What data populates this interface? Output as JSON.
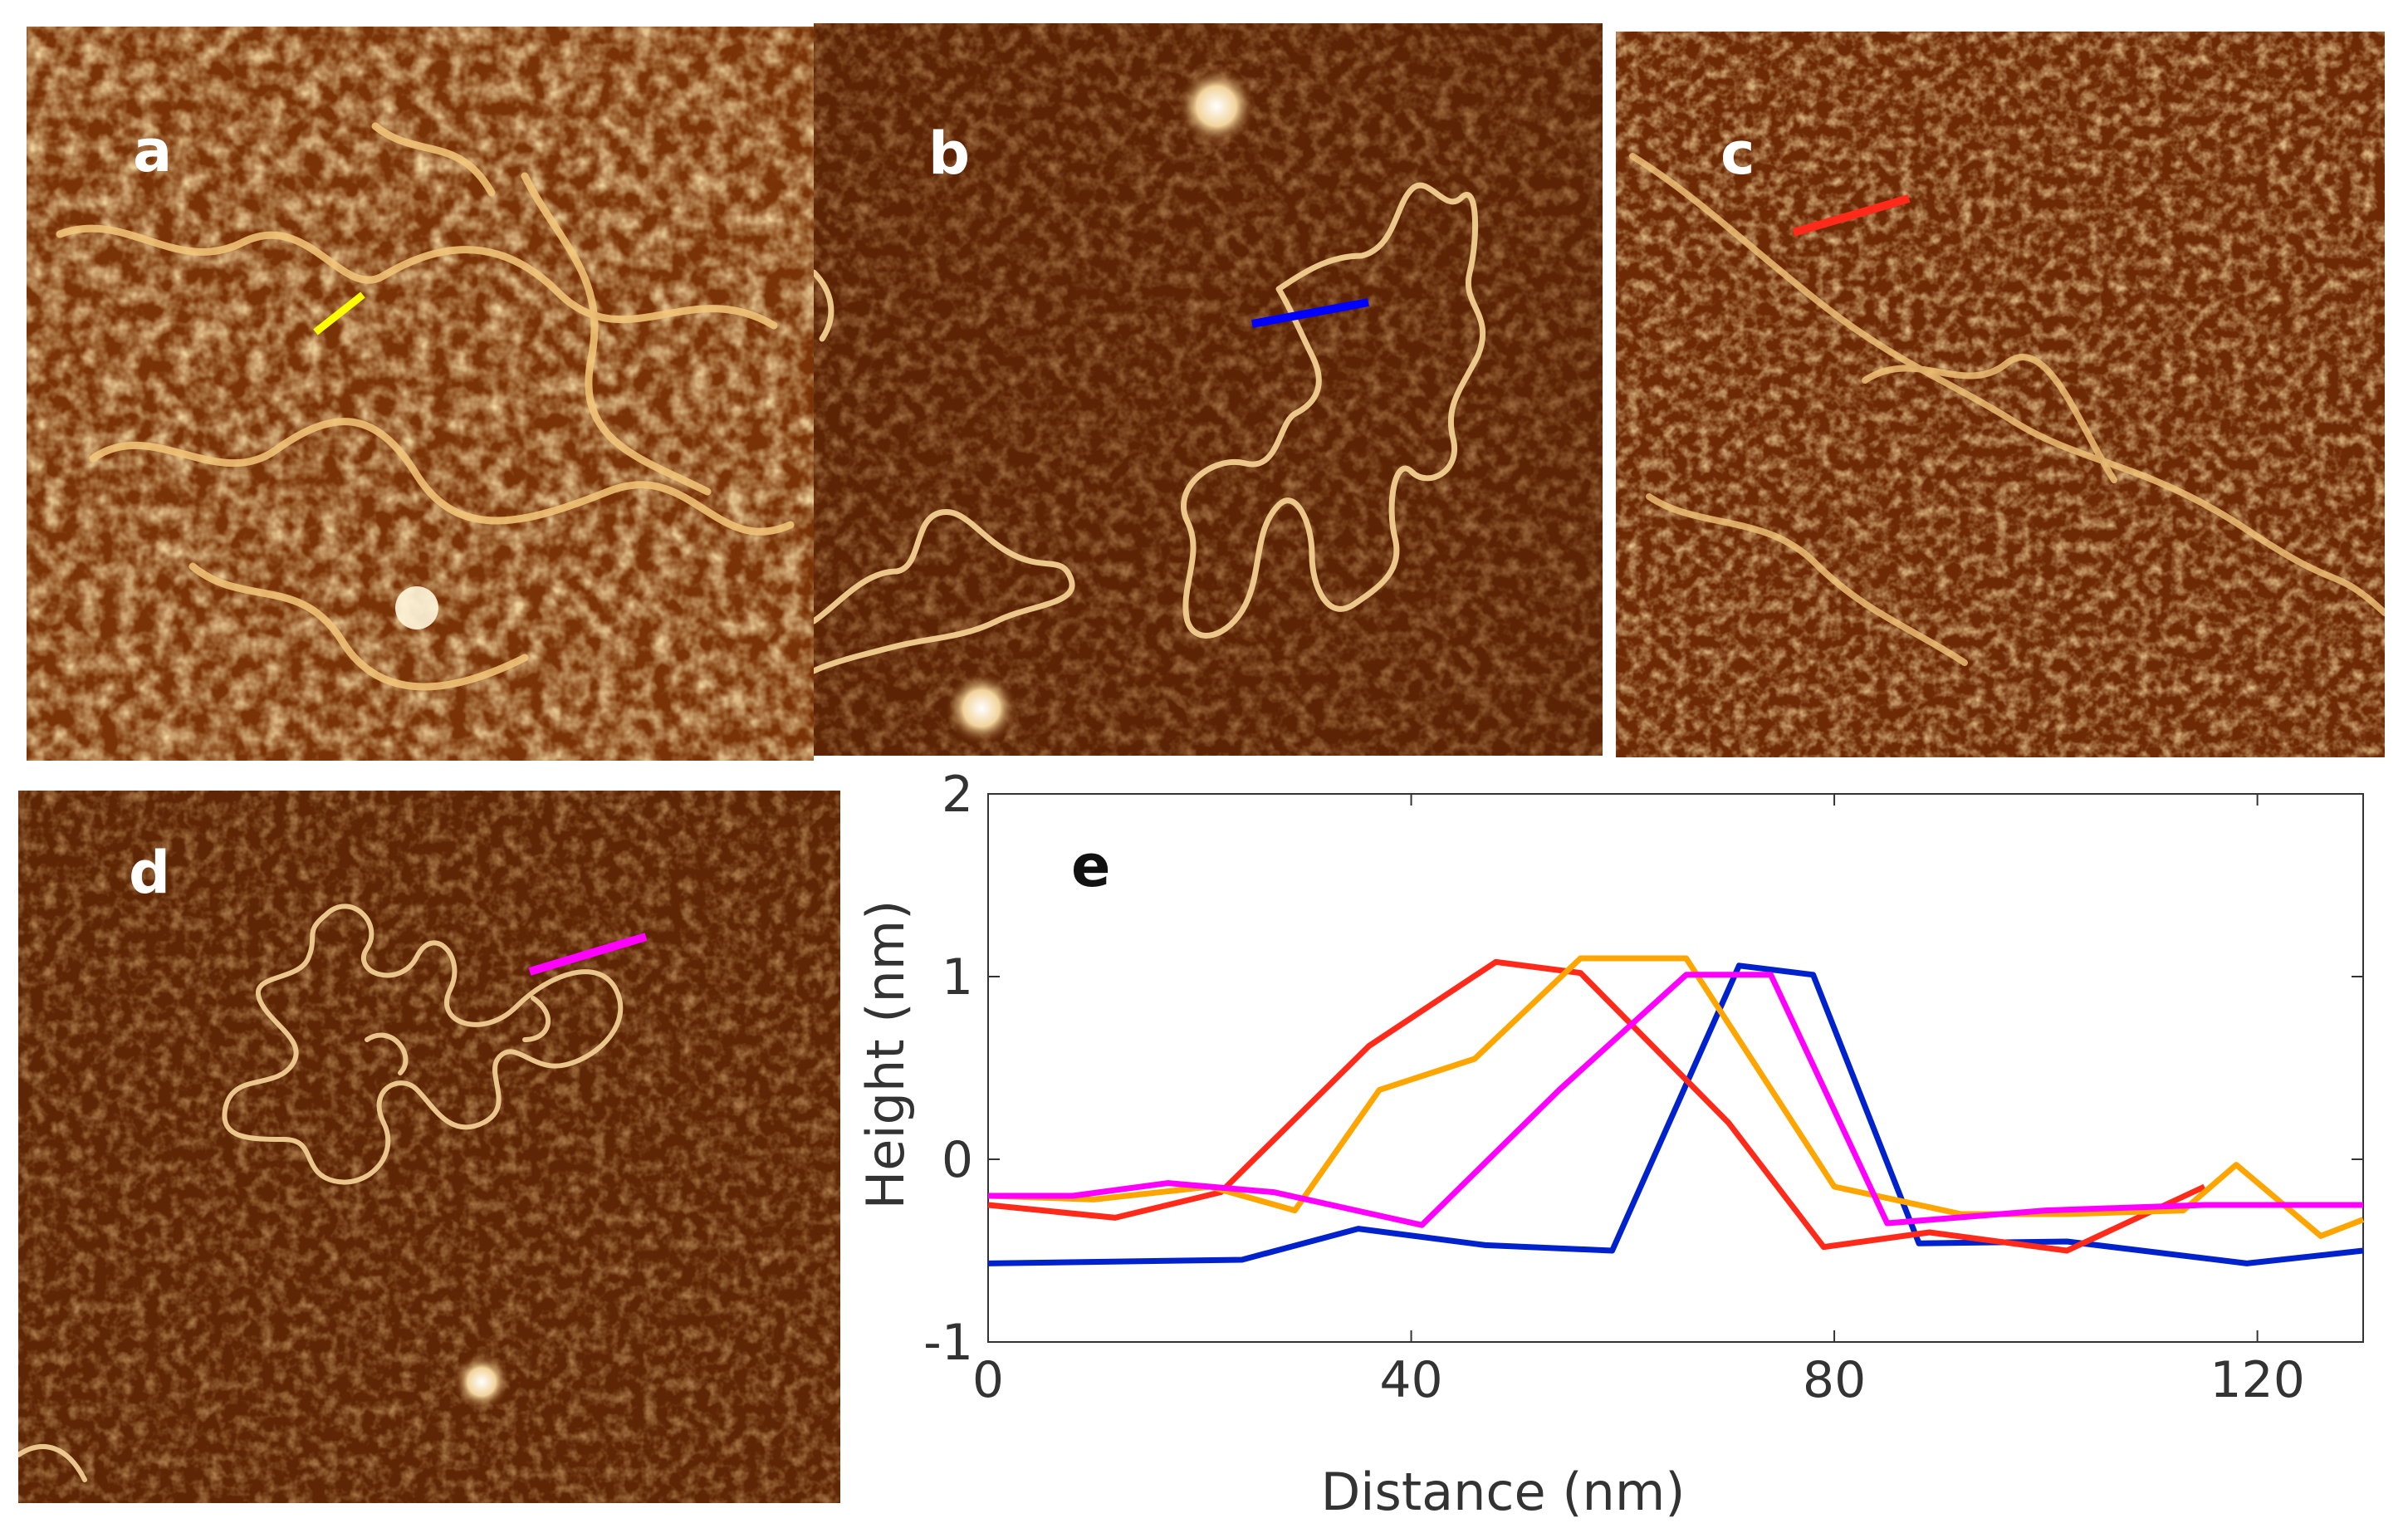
{
  "panels": [
    {
      "label": "a",
      "marker_color": "#ffff00"
    },
    {
      "label": "b",
      "marker_color": "#0000ff"
    },
    {
      "label": "c",
      "marker_color": "#ff2a1a"
    },
    {
      "label": "d",
      "marker_color": "#ff00ff"
    }
  ],
  "chart_data": {
    "type": "line",
    "panel_label": "e",
    "title": "",
    "xlabel": "Distance (nm)",
    "ylabel": "Height (nm)",
    "xlim": [
      0,
      130
    ],
    "ylim": [
      -1,
      2
    ],
    "xticks": [
      0,
      40,
      80,
      120
    ],
    "yticks": [
      -1,
      0,
      1,
      2
    ],
    "grid": false,
    "legend": "none",
    "series": [
      {
        "color": "#0022cc",
        "x": [
          0,
          24,
          35,
          47,
          59,
          71,
          78,
          88,
          102,
          119,
          130
        ],
        "y": [
          -0.57,
          -0.55,
          -0.38,
          -0.47,
          -0.5,
          1.06,
          1.01,
          -0.46,
          -0.45,
          -0.57,
          -0.5
        ]
      },
      {
        "color": "#ff2a1a",
        "x": [
          0,
          12,
          22,
          36,
          48,
          56,
          70,
          79,
          89,
          102,
          115
        ],
        "y": [
          -0.25,
          -0.32,
          -0.18,
          0.62,
          1.08,
          1.02,
          0.2,
          -0.48,
          -0.4,
          -0.5,
          -0.15
        ]
      },
      {
        "color": "#ffa500",
        "x": [
          0,
          10,
          21,
          29,
          37,
          46,
          56,
          66,
          80,
          92,
          102,
          113,
          118,
          126,
          130
        ],
        "y": [
          -0.2,
          -0.22,
          -0.15,
          -0.28,
          0.38,
          0.55,
          1.1,
          1.1,
          -0.15,
          -0.3,
          -0.3,
          -0.28,
          -0.03,
          -0.42,
          -0.33
        ]
      },
      {
        "color": "#ff00ff",
        "x": [
          0,
          8,
          17,
          27,
          41,
          54,
          66,
          74,
          85,
          100,
          115,
          130
        ],
        "y": [
          -0.2,
          -0.2,
          -0.13,
          -0.18,
          -0.36,
          0.38,
          1.01,
          1.01,
          -0.35,
          -0.28,
          -0.25,
          -0.25
        ]
      }
    ]
  }
}
